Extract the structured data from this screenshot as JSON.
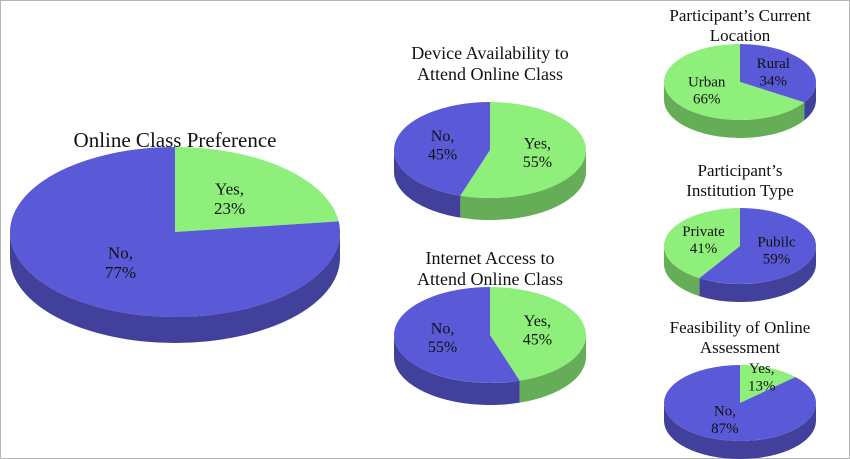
{
  "chart_data": [
    {
      "type": "pie",
      "title": [
        "Online Class Preference"
      ],
      "categories": [
        "Yes,",
        "No,"
      ],
      "values": [
        23,
        77
      ],
      "value_labels": [
        "23%",
        "77%"
      ],
      "colors": [
        "#8ef07a",
        "#5a5ad9"
      ]
    },
    {
      "type": "pie",
      "title": [
        "Device Availability to",
        "Attend Online Class"
      ],
      "categories": [
        "Yes,",
        "No,"
      ],
      "values": [
        55,
        45
      ],
      "value_labels": [
        "55%",
        "45%"
      ],
      "colors": [
        "#8ef07a",
        "#5a5ad9"
      ]
    },
    {
      "type": "pie",
      "title": [
        "Internet Access to",
        "Attend Online Class"
      ],
      "categories": [
        "Yes,",
        "No,"
      ],
      "values": [
        45,
        55
      ],
      "value_labels": [
        "45%",
        "55%"
      ],
      "colors": [
        "#8ef07a",
        "#5a5ad9"
      ]
    },
    {
      "type": "pie",
      "title": [
        "Participant’s Current",
        "Location"
      ],
      "categories": [
        "Rural",
        "Urban"
      ],
      "values": [
        34,
        66
      ],
      "value_labels": [
        "34%",
        "66%"
      ],
      "colors": [
        "#5a5ad9",
        "#8ef07a"
      ]
    },
    {
      "type": "pie",
      "title": [
        "Participant’s",
        "Institution Type"
      ],
      "categories": [
        "Pubilc",
        "Private"
      ],
      "values": [
        59,
        41
      ],
      "value_labels": [
        "59%",
        "41%"
      ],
      "colors": [
        "#5a5ad9",
        "#8ef07a"
      ]
    },
    {
      "type": "pie",
      "title": [
        "Feasibility of Online",
        "Assessment"
      ],
      "categories": [
        "Yes,",
        "No,"
      ],
      "values": [
        13,
        87
      ],
      "value_labels": [
        "13%",
        "87%"
      ],
      "colors": [
        "#8ef07a",
        "#5a5ad9"
      ]
    }
  ]
}
